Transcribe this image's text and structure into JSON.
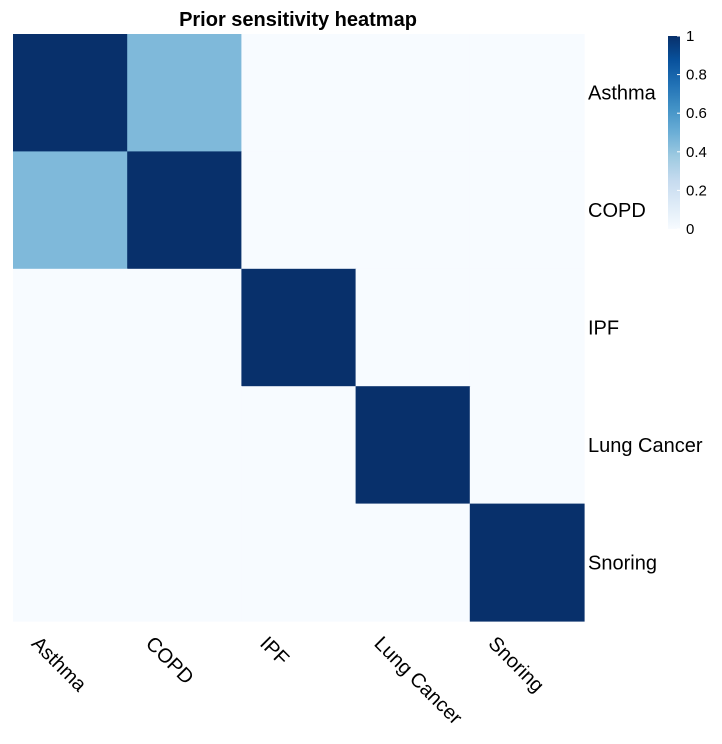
{
  "chart_data": {
    "type": "heatmap",
    "title": "Prior sensitivity heatmap",
    "rows": [
      "Asthma",
      "COPD",
      "IPF",
      "Lung Cancer",
      "Snoring"
    ],
    "cols": [
      "Asthma",
      "COPD",
      "IPF",
      "Lung Cancer",
      "Snoring"
    ],
    "values": [
      [
        1.0,
        0.45,
        0.0,
        0.0,
        0.0
      ],
      [
        0.45,
        1.0,
        0.0,
        0.0,
        0.0
      ],
      [
        0.0,
        0.0,
        1.0,
        0.0,
        0.0
      ],
      [
        0.0,
        0.0,
        0.0,
        1.0,
        0.0
      ],
      [
        0.0,
        0.0,
        0.0,
        0.0,
        1.0
      ]
    ],
    "colorbar": {
      "range": [
        0,
        1
      ],
      "ticks": [
        0,
        0.2,
        0.4,
        0.6,
        0.8,
        1
      ],
      "tick_labels": [
        "0",
        "0.2",
        "0.4",
        "0.6",
        "0.8",
        "1"
      ],
      "colors": [
        "#f7fbff",
        "#deebf7",
        "#c6dbef",
        "#9ecae1",
        "#6baed6",
        "#4292c6",
        "#2171b5",
        "#08519c",
        "#08306b"
      ]
    },
    "row_label_side": "right",
    "col_label_rotation": "rotated -45"
  }
}
